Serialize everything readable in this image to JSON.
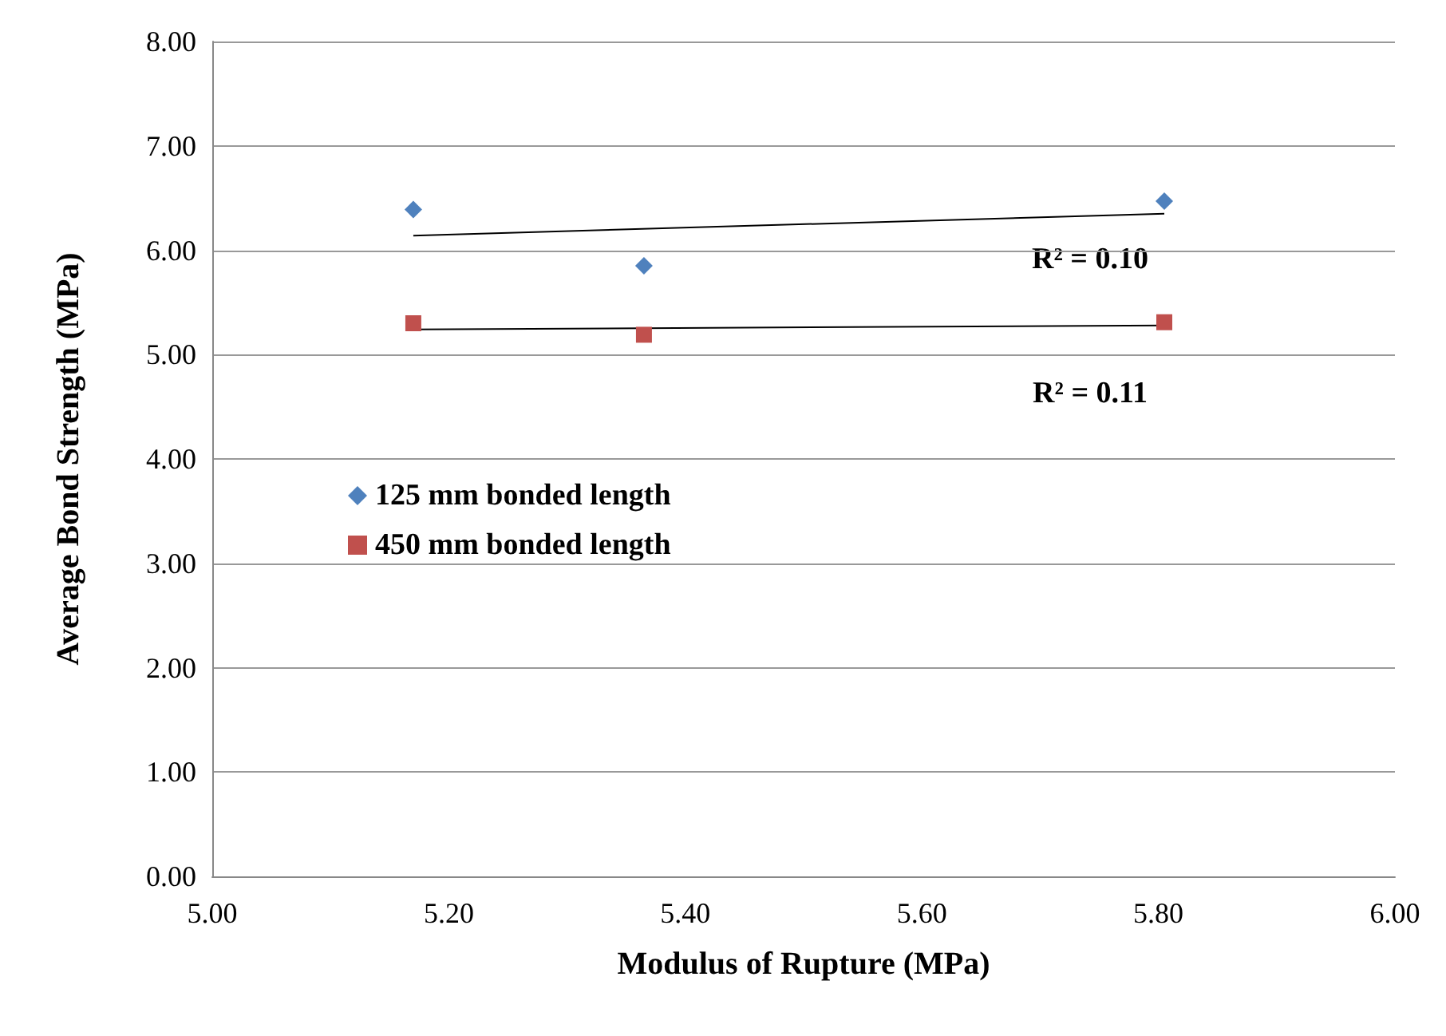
{
  "chart_data": {
    "type": "scatter",
    "xlabel": "Modulus of Rupture (MPa)",
    "ylabel": "Average Bond Strength (MPa)",
    "xlim": [
      5,
      6
    ],
    "xticks": [
      {
        "value": 5,
        "label": "5.00"
      },
      {
        "value": 5.2,
        "label": "5.20"
      },
      {
        "value": 5.4,
        "label": "5.40"
      },
      {
        "value": 5.6,
        "label": "5.60"
      },
      {
        "value": 5.8,
        "label": "5.80"
      },
      {
        "value": 6,
        "label": "6.00"
      }
    ],
    "ylim": [
      0,
      8
    ],
    "yticks": [
      {
        "value": 0,
        "label": "0.00"
      },
      {
        "value": 1,
        "label": "1.00"
      },
      {
        "value": 2,
        "label": "2.00"
      },
      {
        "value": 3,
        "label": "3.00"
      },
      {
        "value": 4,
        "label": "4.00"
      },
      {
        "value": 5,
        "label": "5.00"
      },
      {
        "value": 6,
        "label": "6.00"
      },
      {
        "value": 7,
        "label": "7.00"
      },
      {
        "value": 8,
        "label": "8.00"
      }
    ],
    "grid": "y",
    "legend": "left",
    "series": [
      {
        "name": "125 mm bonded length",
        "color": "#4f81bd",
        "marker": "diamond",
        "x": [
          5.17,
          5.365,
          5.805
        ],
        "values": [
          6.39,
          5.85,
          6.47
        ]
      },
      {
        "name": "450 mm bonded length",
        "color": "#c0504d",
        "marker": "square",
        "x": [
          5.17,
          5.365,
          5.805
        ],
        "values": [
          5.3,
          5.19,
          5.31
        ]
      },
      {
        "type": "line",
        "color": "#000000",
        "marker": "none",
        "x": [
          5.17,
          5.805
        ],
        "values": [
          6.14,
          6.35
        ]
      },
      {
        "type": "line",
        "color": "#000000",
        "marker": "none",
        "x": [
          5.17,
          5.805
        ],
        "values": [
          5.24,
          5.28
        ]
      }
    ],
    "annotations": [
      "R² = 0.10",
      "R² = 0.11"
    ]
  }
}
